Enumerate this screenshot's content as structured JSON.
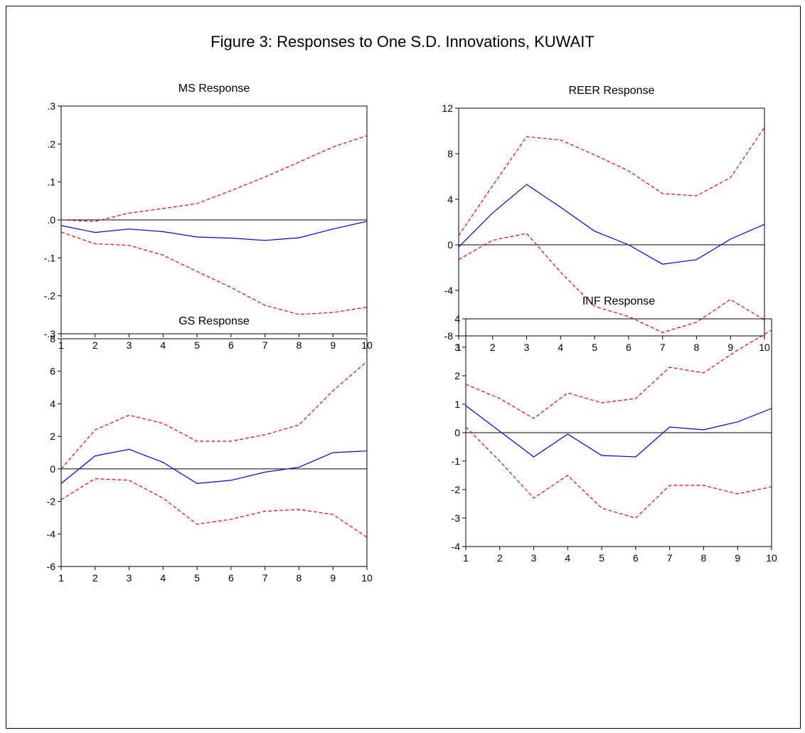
{
  "figure_title": "Figure 3: Responses to One S.D. Innovations, KUWAIT",
  "colors": {
    "response": "#0000ee",
    "band": "#ee0000",
    "zero_line": "#000000"
  },
  "chart_data": [
    {
      "type": "line",
      "title": "MS Response",
      "x": [
        1,
        2,
        3,
        4,
        5,
        6,
        7,
        8,
        9,
        10
      ],
      "ylim": [
        -0.3,
        0.3
      ],
      "yticks": [
        -0.3,
        -0.2,
        -0.1,
        0.0,
        0.1,
        0.2,
        0.3
      ],
      "ytick_labels": [
        "-.3",
        "-.2",
        "-.1",
        ".0",
        ".1",
        ".2",
        ".3"
      ],
      "series": [
        {
          "style": "solid",
          "values": [
            -0.015,
            -0.033,
            -0.024,
            -0.031,
            -0.045,
            -0.048,
            -0.054,
            -0.047,
            -0.024,
            -0.004
          ]
        },
        {
          "style": "dashed",
          "values": [
            0.0,
            -0.004,
            0.018,
            0.03,
            0.043,
            0.077,
            0.113,
            0.152,
            0.192,
            0.222
          ]
        },
        {
          "style": "dashed",
          "values": [
            -0.032,
            -0.063,
            -0.067,
            -0.093,
            -0.136,
            -0.178,
            -0.225,
            -0.249,
            -0.244,
            -0.23
          ]
        }
      ]
    },
    {
      "type": "line",
      "title": "REER Response",
      "x": [
        1,
        2,
        3,
        4,
        5,
        6,
        7,
        8,
        9,
        10
      ],
      "ylim": [
        -8,
        12
      ],
      "yticks": [
        -8,
        -4,
        0,
        4,
        8,
        12
      ],
      "ytick_labels": [
        "-8",
        "-4",
        "0",
        "4",
        "8",
        "12"
      ],
      "series": [
        {
          "style": "solid",
          "values": [
            -0.2,
            2.8,
            5.3,
            3.3,
            1.2,
            0.0,
            -1.7,
            -1.3,
            0.5,
            1.8
          ]
        },
        {
          "style": "dashed",
          "values": [
            0.8,
            5.2,
            9.5,
            9.2,
            7.9,
            6.5,
            4.5,
            4.3,
            5.9,
            10.3
          ]
        },
        {
          "style": "dashed",
          "values": [
            -1.3,
            0.4,
            1.0,
            -2.4,
            -5.4,
            -6.3,
            -7.7,
            -6.8,
            -4.8,
            -6.6
          ]
        }
      ]
    },
    {
      "type": "line",
      "title": "GS Response",
      "x": [
        1,
        2,
        3,
        4,
        5,
        6,
        7,
        8,
        9,
        10
      ],
      "ylim": [
        -6,
        8
      ],
      "yticks": [
        -6,
        -4,
        -2,
        0,
        2,
        4,
        6,
        8
      ],
      "ytick_labels": [
        "-6",
        "-4",
        "-2",
        "0",
        "2",
        "4",
        "6",
        "8"
      ],
      "series": [
        {
          "style": "solid",
          "values": [
            -0.9,
            0.8,
            1.2,
            0.4,
            -0.9,
            -0.7,
            -0.2,
            0.1,
            1.0,
            1.1
          ]
        },
        {
          "style": "dashed",
          "values": [
            0.0,
            2.4,
            3.3,
            2.8,
            1.7,
            1.7,
            2.1,
            2.7,
            4.8,
            6.6
          ]
        },
        {
          "style": "dashed",
          "values": [
            -1.9,
            -0.6,
            -0.7,
            -1.8,
            -3.4,
            -3.1,
            -2.6,
            -2.5,
            -2.8,
            -4.2
          ]
        }
      ]
    },
    {
      "type": "line",
      "title": "INF Response",
      "x": [
        1,
        2,
        3,
        4,
        5,
        6,
        7,
        8,
        9,
        10
      ],
      "ylim": [
        -4,
        4
      ],
      "yticks": [
        -4,
        -3,
        -2,
        -1,
        0,
        1,
        2,
        3,
        4
      ],
      "ytick_labels": [
        "-4",
        "-3",
        "-2",
        "-1",
        "0",
        "1",
        "2",
        "3",
        "4"
      ],
      "series": [
        {
          "style": "solid",
          "values": [
            0.95,
            0.05,
            -0.85,
            -0.05,
            -0.8,
            -0.85,
            0.2,
            0.1,
            0.38,
            0.85
          ]
        },
        {
          "style": "dashed",
          "values": [
            1.7,
            1.2,
            0.5,
            1.4,
            1.05,
            1.2,
            2.3,
            2.1,
            2.9,
            3.6
          ]
        },
        {
          "style": "dashed",
          "values": [
            0.2,
            -1.0,
            -2.3,
            -1.5,
            -2.65,
            -3.0,
            -1.85,
            -1.85,
            -2.15,
            -1.9
          ]
        }
      ]
    }
  ]
}
